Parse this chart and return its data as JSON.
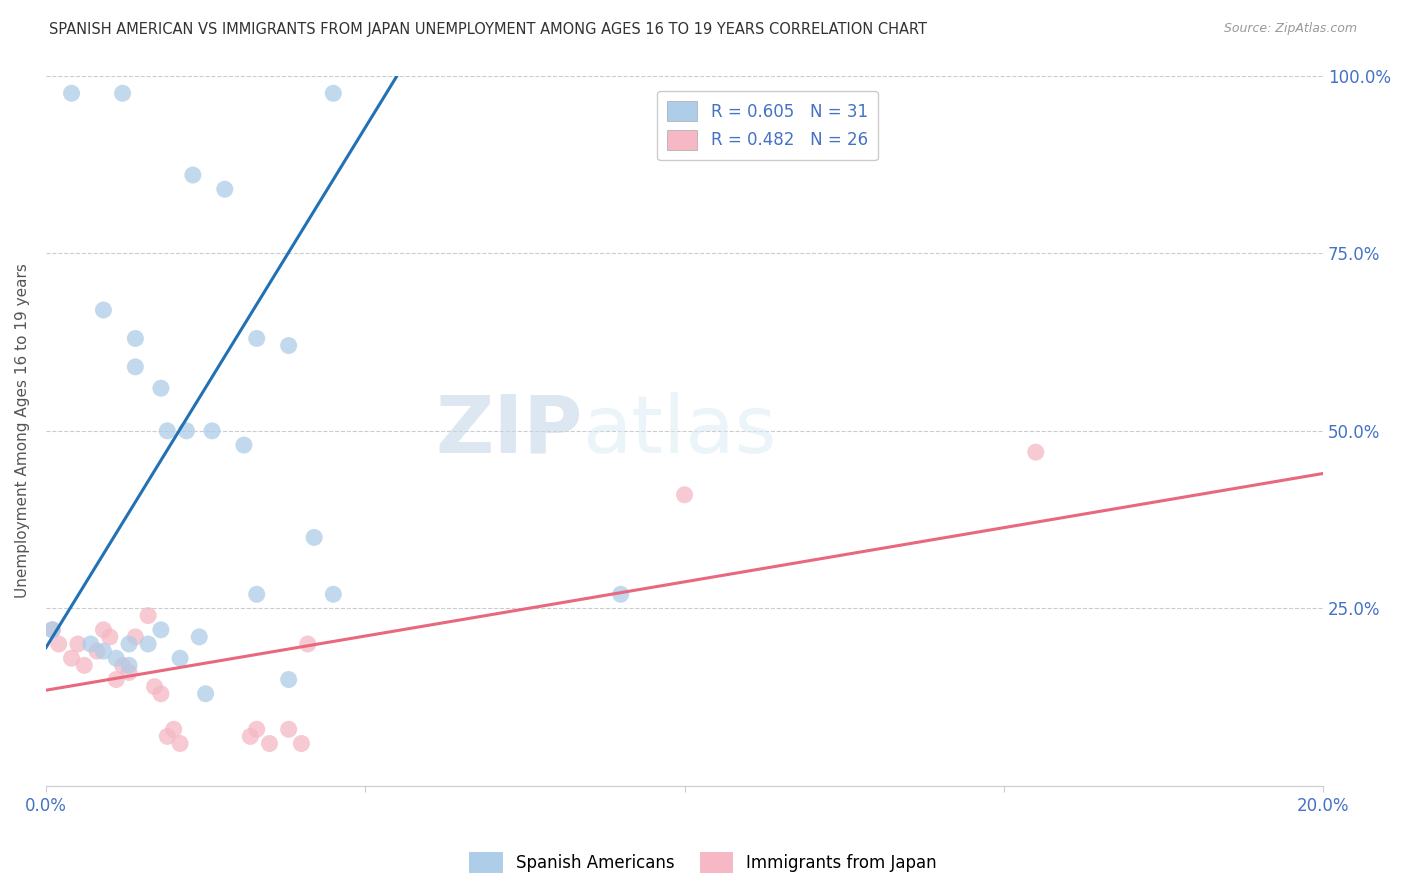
{
  "title": "SPANISH AMERICAN VS IMMIGRANTS FROM JAPAN UNEMPLOYMENT AMONG AGES 16 TO 19 YEARS CORRELATION CHART",
  "source": "Source: ZipAtlas.com",
  "ylabel": "Unemployment Among Ages 16 to 19 years",
  "xlim": [
    0.0,
    0.2
  ],
  "ylim": [
    0.0,
    1.0
  ],
  "xticks": [
    0.0,
    0.05,
    0.1,
    0.15,
    0.2
  ],
  "xtick_labels": [
    "0.0%",
    "",
    "",
    "",
    "20.0%"
  ],
  "yticks": [
    0.0,
    0.25,
    0.5,
    0.75,
    1.0
  ],
  "ytick_labels_right": [
    "",
    "25.0%",
    "50.0%",
    "75.0%",
    "100.0%"
  ],
  "legend_r1": "R = 0.605",
  "legend_n1": "N = 31",
  "legend_r2": "R = 0.482",
  "legend_n2": "N = 26",
  "blue_color": "#aecde8",
  "pink_color": "#f5b8c4",
  "blue_line_color": "#2171b5",
  "pink_line_color": "#e8697d",
  "watermark_zip": "ZIP",
  "watermark_atlas": "atlas",
  "blue_x": [
    0.004,
    0.012,
    0.023,
    0.028,
    0.009,
    0.014,
    0.014,
    0.018,
    0.019,
    0.022,
    0.026,
    0.031,
    0.033,
    0.038,
    0.042,
    0.007,
    0.009,
    0.011,
    0.013,
    0.013,
    0.016,
    0.018,
    0.021,
    0.024,
    0.025,
    0.033,
    0.038,
    0.045,
    0.045,
    0.09,
    0.001
  ],
  "blue_y": [
    0.975,
    0.975,
    0.86,
    0.84,
    0.67,
    0.63,
    0.59,
    0.56,
    0.5,
    0.5,
    0.5,
    0.48,
    0.63,
    0.62,
    0.35,
    0.2,
    0.19,
    0.18,
    0.2,
    0.17,
    0.2,
    0.22,
    0.18,
    0.21,
    0.13,
    0.27,
    0.15,
    0.27,
    0.975,
    0.27,
    0.22
  ],
  "pink_x": [
    0.001,
    0.002,
    0.004,
    0.005,
    0.006,
    0.008,
    0.009,
    0.01,
    0.011,
    0.012,
    0.013,
    0.014,
    0.016,
    0.017,
    0.018,
    0.019,
    0.02,
    0.021,
    0.032,
    0.033,
    0.035,
    0.038,
    0.04,
    0.041,
    0.1,
    0.155
  ],
  "pink_y": [
    0.22,
    0.2,
    0.18,
    0.2,
    0.17,
    0.19,
    0.22,
    0.21,
    0.15,
    0.17,
    0.16,
    0.21,
    0.24,
    0.14,
    0.13,
    0.07,
    0.08,
    0.06,
    0.07,
    0.08,
    0.06,
    0.08,
    0.06,
    0.2,
    0.41,
    0.47
  ],
  "blue_line_x": [
    0.0,
    0.055
  ],
  "blue_line_y": [
    0.195,
    1.0
  ],
  "pink_line_x": [
    0.0,
    0.2
  ],
  "pink_line_y": [
    0.135,
    0.44
  ]
}
